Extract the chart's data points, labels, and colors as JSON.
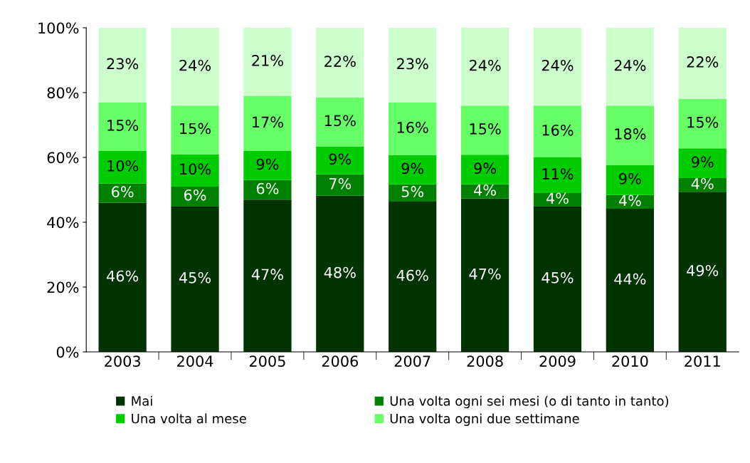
{
  "chart_data": {
    "type": "bar",
    "stacked": true,
    "categories": [
      "2003",
      "2004",
      "2005",
      "2006",
      "2007",
      "2008",
      "2009",
      "2010",
      "2011"
    ],
    "series": [
      {
        "name": "Mai",
        "color": "#003300",
        "values": [
          46,
          45,
          47,
          48.2,
          46.4,
          47.3,
          45,
          44.2,
          49.4
        ],
        "value_labels": [
          "46%",
          "45%",
          "47%",
          "48%",
          "46%",
          "47%",
          "45%",
          "44%",
          "49%"
        ]
      },
      {
        "name": "Una volta ogni sei mesi (o di tanto in tanto)",
        "color": "#008000",
        "values": [
          6,
          6,
          6,
          6.6,
          5.3,
          4.4,
          4,
          4.2,
          4.2
        ],
        "value_labels": [
          "6%",
          "6%",
          "6%",
          "7%",
          "5%",
          "4%",
          "4%",
          "4%",
          "4%"
        ]
      },
      {
        "name": "Una volta al mese",
        "color": "#00cc00",
        "values": [
          10,
          10,
          9,
          8.6,
          9.0,
          9.1,
          11,
          9.3,
          9.2
        ],
        "value_labels": [
          "10%",
          "10%",
          "9%",
          "9%",
          "9%",
          "9%",
          "11%",
          "9%",
          "9%"
        ]
      },
      {
        "name": "Una volta ogni due settimane",
        "color": "#66ff66",
        "values": [
          15,
          15,
          17,
          15.1,
          16.3,
          15.2,
          16,
          18.3,
          15.3
        ],
        "value_labels": [
          "15%",
          "15%",
          "17%",
          "15%",
          "16%",
          "15%",
          "16%",
          "18%",
          "15%"
        ]
      },
      {
        "color": "#ccffcc",
        "values": [
          23,
          24,
          21,
          21.5,
          23.0,
          24.0,
          24,
          24.0,
          21.9
        ],
        "value_labels": [
          "23%",
          "24%",
          "21%",
          "22%",
          "23%",
          "24%",
          "24%",
          "24%",
          "22%"
        ]
      }
    ],
    "ylim": [
      0,
      100
    ],
    "yticks": [
      {
        "value": 0,
        "label": "0%"
      },
      {
        "value": 20,
        "label": "20%"
      },
      {
        "value": 40,
        "label": "40%"
      },
      {
        "value": 60,
        "label": "60%"
      },
      {
        "value": 80,
        "label": "80%"
      },
      {
        "value": 100,
        "label": "100%"
      }
    ],
    "grid": false,
    "legend": "bottom"
  }
}
